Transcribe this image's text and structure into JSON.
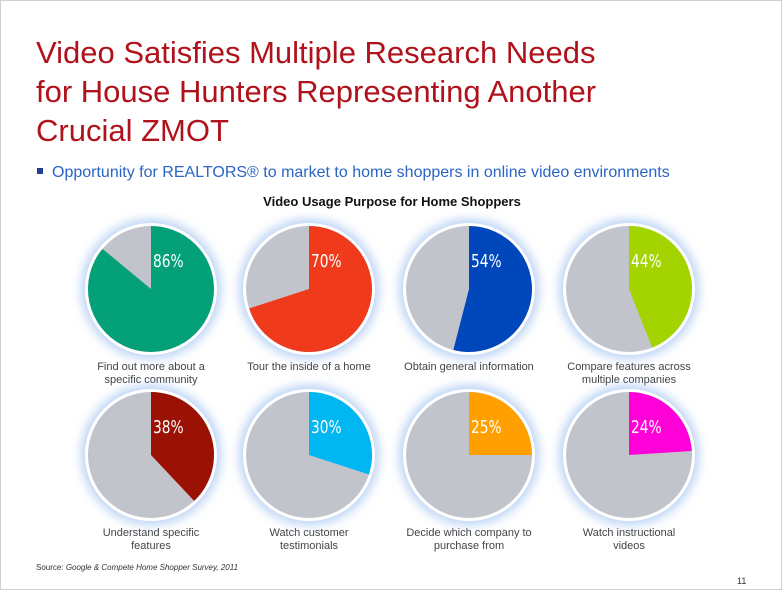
{
  "slide": {
    "title_lines": [
      "Video Satisfies Multiple Research Needs",
      "for House Hunters Representing Another",
      "Crucial ZMOT"
    ],
    "bullet": "Opportunity for REALTORS® to market to home shoppers in online video environments",
    "source_label": "Source:",
    "source_text": "Google & Compete Home Shopper Survey, 2011",
    "page_number": "11"
  },
  "chart_data": {
    "type": "pie",
    "title": "Video Usage Purpose for Home Shoppers",
    "remainder_color": "#c2c4cc",
    "charts": [
      {
        "label": "Find out more about a specific community",
        "label_lines": [
          "Find out more about a",
          "specific community"
        ],
        "value": 86,
        "display": "86%",
        "color": "#04a077"
      },
      {
        "label": "Tour the inside of a home",
        "label_lines": [
          "Tour the inside of a home"
        ],
        "value": 70,
        "display": "70%",
        "color": "#ef3b1c"
      },
      {
        "label": "Obtain general information",
        "label_lines": [
          "Obtain general information"
        ],
        "value": 54,
        "display": "54%",
        "color": "#0047bb"
      },
      {
        "label": "Compare features across multiple companies",
        "label_lines": [
          "Compare features across",
          "multiple companies"
        ],
        "value": 44,
        "display": "44%",
        "color": "#a3d400"
      },
      {
        "label": "Understand specific features",
        "label_lines": [
          "Understand specific",
          "features"
        ],
        "value": 38,
        "display": "38%",
        "color": "#9b1205"
      },
      {
        "label": "Watch customer testimonials",
        "label_lines": [
          "Watch customer",
          "testimonials"
        ],
        "value": 30,
        "display": "30%",
        "color": "#00b7f1"
      },
      {
        "label": "Decide which company to purchase from",
        "label_lines": [
          "Decide which company to",
          "purchase from"
        ],
        "value": 25,
        "display": "25%",
        "color": "#ffa000"
      },
      {
        "label": "Watch instructional videos",
        "label_lines": [
          "Watch instructional",
          "videos"
        ],
        "value": 24,
        "display": "24%",
        "color": "#ff00d8"
      }
    ]
  }
}
